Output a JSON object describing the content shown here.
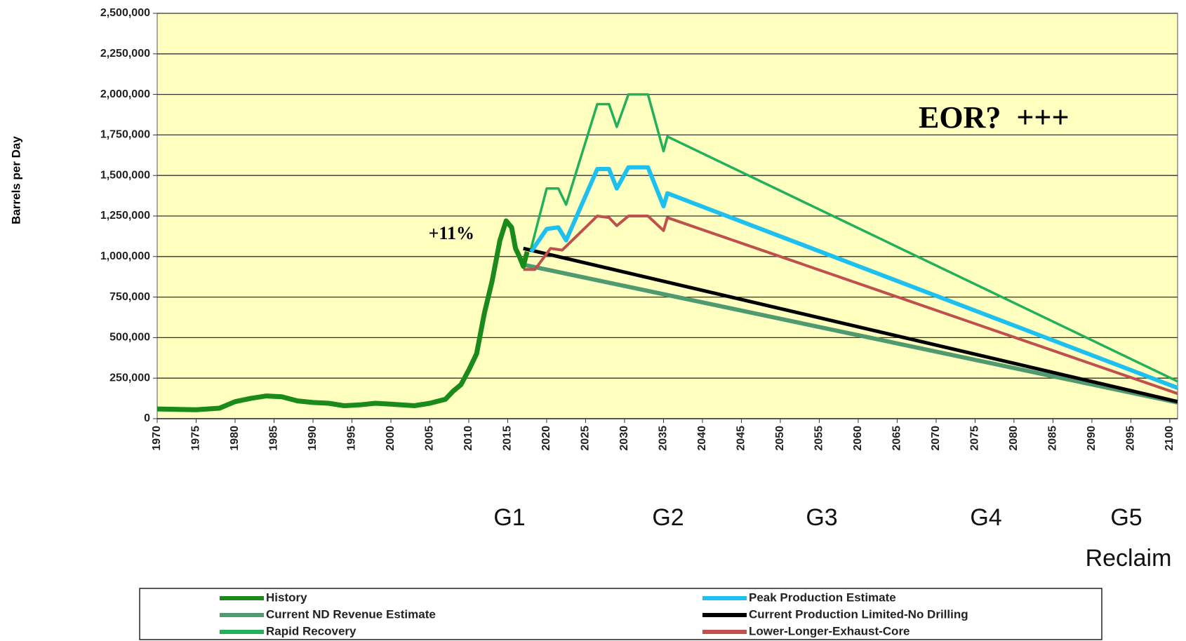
{
  "chart_data": {
    "type": "line",
    "y_label": "Barrels per Day",
    "xlim": [
      1970,
      2101
    ],
    "xticks": [
      1970,
      1975,
      1980,
      1985,
      1990,
      1995,
      2000,
      2005,
      2010,
      2015,
      2020,
      2025,
      2030,
      2035,
      2040,
      2045,
      2050,
      2055,
      2060,
      2065,
      2070,
      2075,
      2080,
      2085,
      2090,
      2095,
      2100
    ],
    "ylim": [
      0,
      2500000
    ],
    "yticks": [
      {
        "value": 0,
        "label": "0"
      },
      {
        "value": 250000,
        "label": "250,000"
      },
      {
        "value": 500000,
        "label": "500,000"
      },
      {
        "value": 750000,
        "label": "750,000"
      },
      {
        "value": 1000000,
        "label": "1,000,000"
      },
      {
        "value": 1250000,
        "label": "1,250,000"
      },
      {
        "value": 1500000,
        "label": "1,500,000"
      },
      {
        "value": 1750000,
        "label": "1,750,000"
      },
      {
        "value": 2000000,
        "label": "2,000,000"
      },
      {
        "value": 2250000,
        "label": "2,250,000"
      },
      {
        "value": 2500000,
        "label": "2,500,000"
      }
    ],
    "grid": true,
    "background": "#ffffc0",
    "annotations": [
      "+11%",
      "EOR?  +++",
      "G1",
      "G2",
      "G3",
      "G4",
      "G5",
      "Reclaim"
    ],
    "series": [
      {
        "name": "History",
        "color": "#1a8a1a",
        "x": [
          1970,
          1975,
          1978,
          1980,
          1982,
          1984,
          1986,
          1988,
          1990,
          1992,
          1994,
          1996,
          1998,
          2000,
          2003,
          2005,
          2007,
          2008,
          2009,
          2010,
          2011,
          2012,
          2013,
          2014,
          2014.8,
          2015.5,
          2016,
          2016.5,
          2017,
          2017.5
        ],
        "values": [
          60000,
          55000,
          65000,
          105000,
          125000,
          140000,
          135000,
          110000,
          100000,
          95000,
          80000,
          85000,
          95000,
          90000,
          80000,
          95000,
          120000,
          170000,
          210000,
          300000,
          400000,
          650000,
          850000,
          1100000,
          1220000,
          1180000,
          1050000,
          1000000,
          940000,
          1030000
        ]
      },
      {
        "name": "Peak Production Estimate",
        "color": "#1ec0f0",
        "x": [
          2018,
          2020,
          2021.5,
          2022.5,
          2026.5,
          2028,
          2029,
          2030.5,
          2033,
          2035,
          2035.5,
          2101
        ],
        "values": [
          1030000,
          1170000,
          1180000,
          1100000,
          1540000,
          1540000,
          1420000,
          1550000,
          1550000,
          1310000,
          1390000,
          190000
        ]
      },
      {
        "name": "Current ND Revenue Estimate",
        "color": "#4f9a6f",
        "x": [
          2017,
          2101
        ],
        "values": [
          950000,
          100000
        ]
      },
      {
        "name": "Current Production Limited-No Drilling",
        "color": "#000000",
        "x": [
          2017,
          2101
        ],
        "values": [
          1050000,
          105000
        ]
      },
      {
        "name": "Rapid Recovery",
        "color": "#22b05a",
        "x": [
          2018,
          2020,
          2021.5,
          2022.5,
          2026.5,
          2028,
          2029,
          2030.5,
          2033,
          2035,
          2035.5,
          2101
        ],
        "values": [
          1050000,
          1420000,
          1420000,
          1320000,
          1940000,
          1940000,
          1800000,
          2000000,
          2000000,
          1650000,
          1740000,
          230000
        ]
      },
      {
        "name": "Lower-Longer-Exhaust-Core",
        "color": "#c0504d",
        "x": [
          2017,
          2018.5,
          2020.5,
          2022,
          2026.5,
          2028,
          2029,
          2030.5,
          2033,
          2035,
          2035.5,
          2101
        ],
        "values": [
          920000,
          920000,
          1050000,
          1040000,
          1250000,
          1240000,
          1190000,
          1250000,
          1250000,
          1160000,
          1240000,
          155000
        ]
      }
    ]
  }
}
